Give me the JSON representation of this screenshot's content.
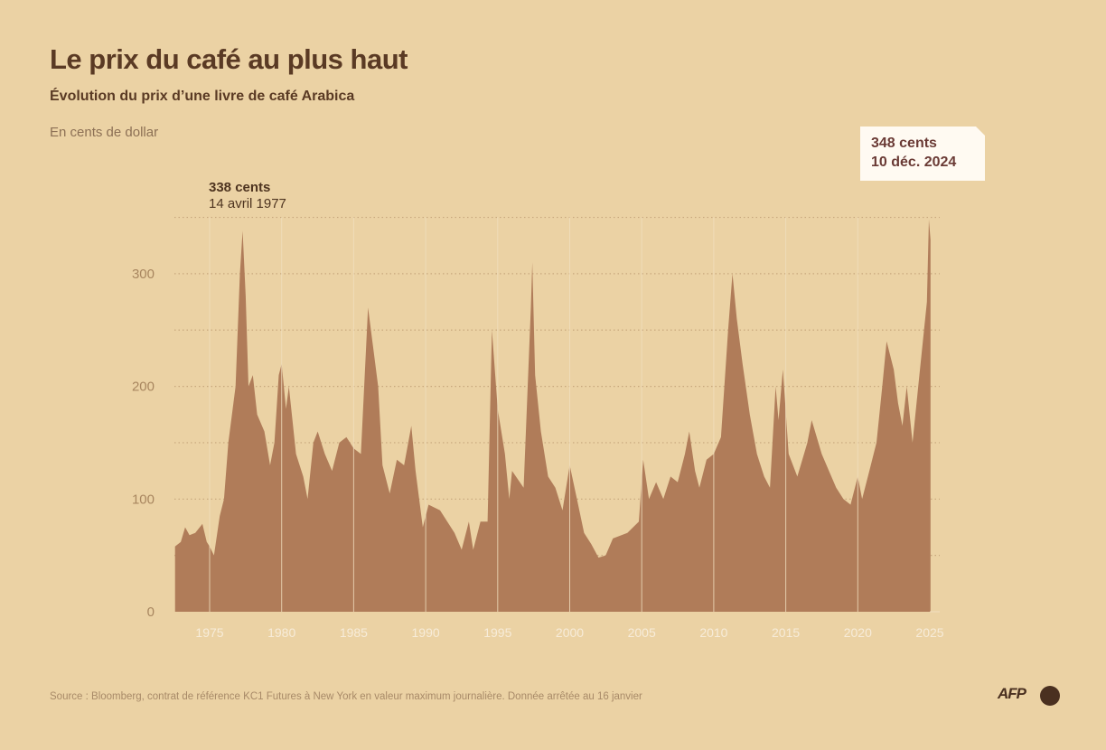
{
  "title": "Le prix du café au plus haut",
  "subtitle": "Évolution du prix d’une livre de café Arabica",
  "unit": "En cents de dollar",
  "source": "Source : Bloomberg, contrat de référence KC1 Futures à New York en valeur maximum journalière. Donnée arrêtée au 16 janvier",
  "logo": "AFP",
  "colors": {
    "background": "#ebd2a4",
    "area": "#b07c59",
    "title": "#5a3a24",
    "highlight_box": "#fffaf2"
  },
  "chart_data": {
    "type": "area",
    "title": "Le prix du café au plus haut",
    "ylabel": "En cents de dollar",
    "xlim": [
      1972.6,
      2025.05
    ],
    "ylim": [
      0,
      350
    ],
    "grid": {
      "horizontal": "dotted every 50",
      "vertical": "every 5 years"
    },
    "y_ticks": [
      0,
      100,
      200,
      300
    ],
    "y_tick_labels": [
      "0",
      "100",
      "200",
      "300"
    ],
    "x_ticks": [
      1975,
      1980,
      1985,
      1990,
      1995,
      2000,
      2005,
      2010,
      2015,
      2020,
      2025
    ],
    "x_tick_labels": [
      "1975",
      "1980",
      "1985",
      "1990",
      "1995",
      "2000",
      "2005",
      "2010",
      "2015",
      "2020",
      "2025"
    ],
    "annotations": [
      {
        "label1": "338 cents",
        "label2": "14 avril 1977",
        "x": 1977.29,
        "y": 338
      },
      {
        "label1": "348 cents",
        "label2": "10 déc. 2024",
        "x": 2024.94,
        "y": 348,
        "highlighted": true
      }
    ],
    "x": [
      1972.6,
      1973.0,
      1973.3,
      1973.6,
      1974.0,
      1974.5,
      1974.8,
      1975.0,
      1975.3,
      1975.7,
      1976.0,
      1976.3,
      1976.8,
      1977.1,
      1977.29,
      1977.5,
      1977.7,
      1978.0,
      1978.3,
      1978.8,
      1979.2,
      1979.5,
      1979.8,
      1980.0,
      1980.3,
      1980.5,
      1981.0,
      1981.5,
      1981.8,
      1982.2,
      1982.5,
      1983.0,
      1983.5,
      1984.0,
      1984.5,
      1985.0,
      1985.5,
      1986.0,
      1986.3,
      1986.7,
      1987.0,
      1987.5,
      1988.0,
      1988.5,
      1989.0,
      1989.3,
      1989.8,
      1990.2,
      1991.0,
      1992.0,
      1992.5,
      1993.0,
      1993.3,
      1993.8,
      1994.3,
      1994.6,
      1995.0,
      1995.5,
      1995.8,
      1996.0,
      1996.8,
      1997.3,
      1997.4,
      1997.6,
      1998.0,
      1998.5,
      1999.0,
      1999.5,
      2000.0,
      2000.5,
      2001.0,
      2001.5,
      2002.0,
      2002.5,
      2003.0,
      2004.0,
      2004.8,
      2005.1,
      2005.5,
      2006.0,
      2006.5,
      2007.0,
      2007.5,
      2008.0,
      2008.3,
      2008.7,
      2009.0,
      2009.5,
      2010.0,
      2010.5,
      2011.0,
      2011.3,
      2011.6,
      2012.0,
      2012.5,
      2013.0,
      2013.5,
      2013.9,
      2014.3,
      2014.5,
      2014.8,
      2015.2,
      2015.8,
      2016.5,
      2016.8,
      2017.5,
      2018.0,
      2018.5,
      2019.0,
      2019.5,
      2020.0,
      2020.3,
      2020.8,
      2021.3,
      2021.7,
      2022.0,
      2022.5,
      2022.8,
      2023.1,
      2023.4,
      2023.8,
      2024.2,
      2024.6,
      2024.8,
      2024.94,
      2025.05
    ],
    "values": [
      58,
      62,
      75,
      68,
      70,
      78,
      62,
      58,
      50,
      85,
      100,
      150,
      200,
      300,
      338,
      280,
      200,
      210,
      175,
      160,
      130,
      150,
      210,
      220,
      180,
      200,
      140,
      120,
      100,
      150,
      160,
      140,
      125,
      150,
      155,
      145,
      140,
      270,
      240,
      200,
      130,
      105,
      135,
      130,
      165,
      125,
      75,
      95,
      90,
      70,
      55,
      80,
      55,
      80,
      80,
      250,
      180,
      140,
      100,
      125,
      110,
      270,
      310,
      210,
      160,
      120,
      110,
      90,
      130,
      100,
      70,
      60,
      48,
      50,
      65,
      70,
      80,
      135,
      100,
      115,
      100,
      120,
      115,
      140,
      160,
      125,
      110,
      135,
      140,
      155,
      250,
      300,
      260,
      220,
      175,
      140,
      120,
      110,
      200,
      170,
      215,
      140,
      120,
      150,
      170,
      140,
      125,
      110,
      100,
      95,
      120,
      100,
      125,
      150,
      200,
      240,
      215,
      185,
      165,
      200,
      150,
      200,
      250,
      275,
      348,
      330
    ]
  }
}
